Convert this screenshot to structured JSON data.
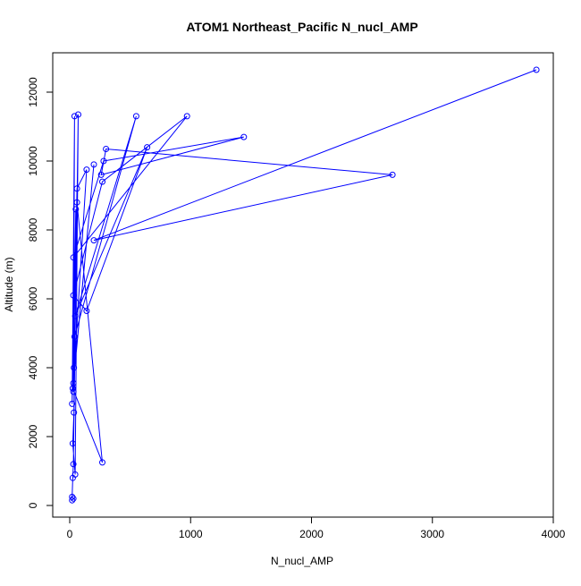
{
  "chart_data": {
    "type": "line",
    "title": "ATOM1 Northeast_Pacific N_nucl_AMP",
    "xlabel": "N_nucl_AMP",
    "ylabel": "Altitude (m)",
    "xlim": [
      0,
      4000
    ],
    "ylim": [
      0,
      12000
    ],
    "x_ticks": [
      0,
      1000,
      2000,
      3000,
      4000
    ],
    "y_ticks": [
      0,
      2000,
      4000,
      6000,
      8000,
      10000,
      12000
    ],
    "x_tick_labels": [
      "0",
      "1000",
      "2000",
      "3000",
      "4000"
    ],
    "y_tick_labels": [
      "0",
      "2000",
      "4000",
      "6000",
      "8000",
      "10000",
      "12000"
    ],
    "grid": false,
    "legend": "none",
    "series": [
      {
        "color": "#0000ff",
        "marker": "open-circle",
        "x": [
          20,
          30,
          20,
          25,
          30,
          70,
          45,
          25,
          35,
          50,
          20,
          40,
          30,
          60,
          270,
          25,
          200,
          30,
          140,
          60,
          35,
          40,
          550,
          45,
          640,
          140,
          30,
          270,
          970,
          30,
          280,
          1440,
          260,
          300,
          2670,
          200,
          3860
        ],
        "y": [
          150,
          200,
          250,
          800,
          1200,
          11350,
          900,
          1800,
          2700,
          8600,
          2950,
          11300,
          3300,
          8800,
          1250,
          3400,
          9900,
          3550,
          9750,
          9200,
          4000,
          4900,
          11300,
          5500,
          10400,
          5650,
          6100,
          9400,
          11300,
          7200,
          10000,
          10700,
          9600,
          10350,
          9600,
          7700,
          12650
        ]
      }
    ]
  }
}
